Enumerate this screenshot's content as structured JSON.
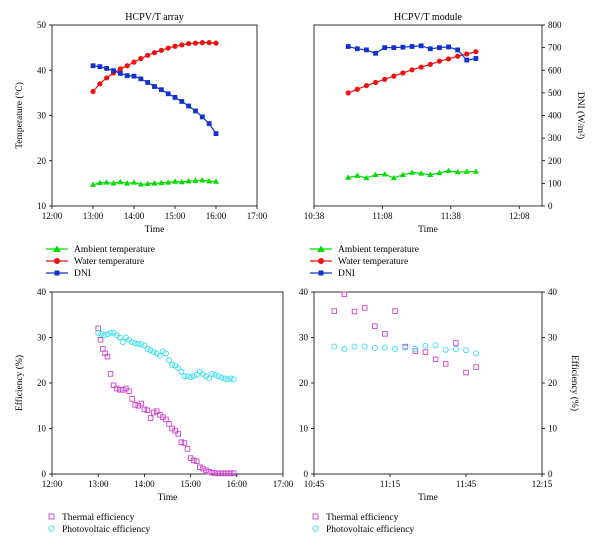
{
  "chart_data": [
    {
      "type": "line",
      "title": "HCPV/T array",
      "xlabel": "Time",
      "ylabel": "Temperature (°C)",
      "xlim": [
        720,
        1020
      ],
      "ylim": [
        10,
        50
      ],
      "x_ticks": [
        {
          "v": 720,
          "label": "12:00"
        },
        {
          "v": 780,
          "label": "13:00"
        },
        {
          "v": 840,
          "label": "14:00"
        },
        {
          "v": 900,
          "label": "15:00"
        },
        {
          "v": 960,
          "label": "16:00"
        },
        {
          "v": 1020,
          "label": "17:00"
        }
      ],
      "y_ticks": [
        10,
        20,
        30,
        40,
        50
      ],
      "series": [
        {
          "name": "Ambient temperature",
          "color": "#00dd00",
          "marker": "triangle",
          "axis": "left",
          "x": [
            780,
            790,
            800,
            810,
            820,
            830,
            840,
            850,
            860,
            870,
            880,
            890,
            900,
            910,
            920,
            930,
            940,
            950,
            960
          ],
          "y": [
            14.7,
            15.1,
            15.2,
            15.0,
            15.3,
            15.0,
            15.2,
            14.8,
            14.9,
            15.0,
            15.1,
            15.2,
            15.4,
            15.3,
            15.5,
            15.6,
            15.7,
            15.5,
            15.4
          ]
        },
        {
          "name": "Water temperature",
          "color": "#ee1111",
          "marker": "circle",
          "axis": "left",
          "x": [
            780,
            790,
            800,
            810,
            820,
            830,
            840,
            850,
            860,
            870,
            880,
            890,
            900,
            910,
            920,
            930,
            940,
            950,
            960
          ],
          "y": [
            35.3,
            37.0,
            38.3,
            39.4,
            40.3,
            41.0,
            41.8,
            42.6,
            43.3,
            43.9,
            44.4,
            44.9,
            45.3,
            45.6,
            45.9,
            46.0,
            46.1,
            46.1,
            46.0
          ]
        },
        {
          "name": "DNI",
          "color": "#1133cc",
          "marker": "square",
          "axis": "left",
          "x": [
            780,
            790,
            800,
            810,
            820,
            830,
            840,
            850,
            860,
            870,
            880,
            890,
            900,
            910,
            920,
            930,
            940,
            950,
            960
          ],
          "y": [
            41.0,
            40.8,
            40.4,
            39.9,
            39.3,
            38.8,
            38.7,
            38.1,
            37.3,
            36.4,
            35.7,
            34.8,
            34.0,
            33.1,
            32.1,
            31.0,
            29.7,
            28.2,
            26.0
          ]
        }
      ]
    },
    {
      "type": "line",
      "title": "HCPV/T module",
      "xlabel": "Time",
      "ylabel": "",
      "y2label": "DNI (W/m²)",
      "xlim": [
        638,
        738
      ],
      "ylim": [
        10,
        50
      ],
      "y2lim": [
        0,
        800
      ],
      "x_ticks": [
        {
          "v": 638,
          "label": "10:38"
        },
        {
          "v": 668,
          "label": "11:08"
        },
        {
          "v": 698,
          "label": "11:38"
        },
        {
          "v": 728,
          "label": "12:08"
        }
      ],
      "y2_ticks": [
        0,
        100,
        200,
        300,
        400,
        500,
        600,
        700,
        800
      ],
      "series": [
        {
          "name": "Ambient temperature",
          "color": "#00dd00",
          "marker": "triangle",
          "axis": "left",
          "x": [
            653,
            657,
            661,
            665,
            669,
            673,
            677,
            681,
            685,
            689,
            693,
            697,
            701,
            705,
            709
          ],
          "y": [
            16.3,
            16.7,
            16.2,
            16.9,
            17.0,
            16.2,
            16.9,
            17.4,
            17.2,
            16.9,
            17.3,
            17.8,
            17.5,
            17.6,
            17.6
          ]
        },
        {
          "name": "Water temperature",
          "color": "#ee1111",
          "marker": "circle",
          "axis": "left",
          "x": [
            653,
            657,
            661,
            665,
            669,
            673,
            677,
            681,
            685,
            689,
            693,
            697,
            701,
            705,
            709
          ],
          "y": [
            35.0,
            35.8,
            36.6,
            37.3,
            38.0,
            38.7,
            39.4,
            40.1,
            40.7,
            41.3,
            42.0,
            42.5,
            43.1,
            43.6,
            44.1
          ]
        },
        {
          "name": "DNI",
          "color": "#1133cc",
          "marker": "square",
          "axis": "right",
          "x": [
            653,
            657,
            661,
            665,
            669,
            673,
            677,
            681,
            685,
            689,
            693,
            697,
            701,
            705,
            709
          ],
          "y": [
            705,
            695,
            690,
            675,
            700,
            700,
            702,
            705,
            708,
            695,
            700,
            703,
            690,
            645,
            652
          ]
        }
      ]
    },
    {
      "type": "scatter",
      "title": "",
      "xlabel": "Time",
      "ylabel": "Efficiency (%)",
      "xlim": [
        720,
        1020
      ],
      "ylim": [
        0,
        40
      ],
      "x_ticks": [
        {
          "v": 720,
          "label": "12:00"
        },
        {
          "v": 780,
          "label": "13:00"
        },
        {
          "v": 840,
          "label": "14:00"
        },
        {
          "v": 900,
          "label": "15:00"
        },
        {
          "v": 960,
          "label": "16:00"
        },
        {
          "v": 1020,
          "label": "17:00"
        }
      ],
      "y_ticks": [
        0,
        10,
        20,
        30,
        40
      ],
      "series": [
        {
          "name": "Thermal efficiency",
          "color": "#cc44cc",
          "marker": "square-open",
          "axis": "left",
          "x": [
            780,
            783,
            786,
            789,
            792,
            796,
            800,
            804,
            808,
            812,
            816,
            820,
            824,
            828,
            832,
            836,
            840,
            844,
            848,
            852,
            856,
            860,
            864,
            868,
            872,
            876,
            880,
            884,
            888,
            892,
            896,
            900,
            904,
            908,
            912,
            916,
            920,
            924,
            928,
            932,
            936,
            940,
            944,
            948,
            952,
            956
          ],
          "y": [
            32.0,
            29.5,
            27.5,
            26.5,
            25.8,
            22.0,
            19.5,
            18.8,
            18.5,
            18.5,
            18.8,
            18.2,
            16.5,
            15.2,
            15.0,
            15.5,
            14.2,
            14.0,
            12.3,
            13.5,
            13.8,
            13.0,
            12.5,
            12.0,
            11.0,
            10.0,
            9.5,
            8.8,
            7.0,
            6.8,
            5.5,
            3.5,
            3.0,
            2.8,
            1.5,
            1.2,
            0.8,
            0.5,
            0.3,
            0.2,
            0.1,
            0.2,
            0.1,
            0.2,
            0.1,
            0.2
          ]
        },
        {
          "name": "Photovoltaic efficiency",
          "color": "#33ddee",
          "marker": "circle-open",
          "axis": "left",
          "x": [
            780,
            784,
            788,
            792,
            796,
            800,
            804,
            808,
            812,
            816,
            820,
            824,
            828,
            832,
            836,
            840,
            844,
            848,
            852,
            856,
            860,
            864,
            868,
            872,
            876,
            880,
            884,
            888,
            892,
            896,
            900,
            904,
            908,
            912,
            916,
            920,
            924,
            928,
            932,
            936,
            940,
            944,
            948,
            952,
            956
          ],
          "y": [
            31.0,
            30.8,
            30.5,
            30.7,
            31.0,
            31.0,
            30.5,
            30.0,
            29.0,
            30.0,
            29.5,
            29.0,
            28.7,
            28.6,
            28.5,
            28.2,
            27.5,
            27.2,
            26.8,
            26.5,
            26.0,
            27.0,
            26.5,
            25.0,
            24.0,
            23.8,
            23.3,
            22.5,
            21.5,
            21.5,
            21.3,
            21.5,
            21.8,
            22.5,
            22.0,
            21.5,
            21.0,
            22.0,
            21.8,
            21.5,
            21.2,
            21.0,
            20.8,
            21.0,
            20.8
          ]
        }
      ]
    },
    {
      "type": "scatter",
      "title": "",
      "xlabel": "Time",
      "ylabel": "Efficiency (%)",
      "xlim": [
        645,
        735
      ],
      "ylim": [
        0,
        40
      ],
      "x_ticks": [
        {
          "v": 645,
          "label": "10:45"
        },
        {
          "v": 675,
          "label": "11:15"
        },
        {
          "v": 705,
          "label": "11:45"
        },
        {
          "v": 735,
          "label": "12:15"
        }
      ],
      "y_ticks": [
        0,
        10,
        20,
        30,
        40
      ],
      "series": [
        {
          "name": "Thermal efficiency",
          "color": "#cc44cc",
          "marker": "square-open",
          "axis": "left",
          "x": [
            653,
            657,
            661,
            665,
            669,
            673,
            677,
            681,
            685,
            689,
            693,
            697,
            701,
            705,
            709
          ],
          "y": [
            35.8,
            39.5,
            35.7,
            36.5,
            32.5,
            30.8,
            35.8,
            28.0,
            27.0,
            26.8,
            25.2,
            24.2,
            28.8,
            22.3,
            23.5
          ]
        },
        {
          "name": "Photovoltaic efficiency",
          "color": "#33ddee",
          "marker": "circle-open",
          "axis": "left",
          "x": [
            653,
            657,
            661,
            665,
            669,
            673,
            677,
            681,
            685,
            689,
            693,
            697,
            701,
            705,
            709
          ],
          "y": [
            28.0,
            27.5,
            28.0,
            28.0,
            27.7,
            27.8,
            27.5,
            27.8,
            27.5,
            28.2,
            28.3,
            27.3,
            27.5,
            27.2,
            26.5
          ]
        }
      ]
    }
  ]
}
